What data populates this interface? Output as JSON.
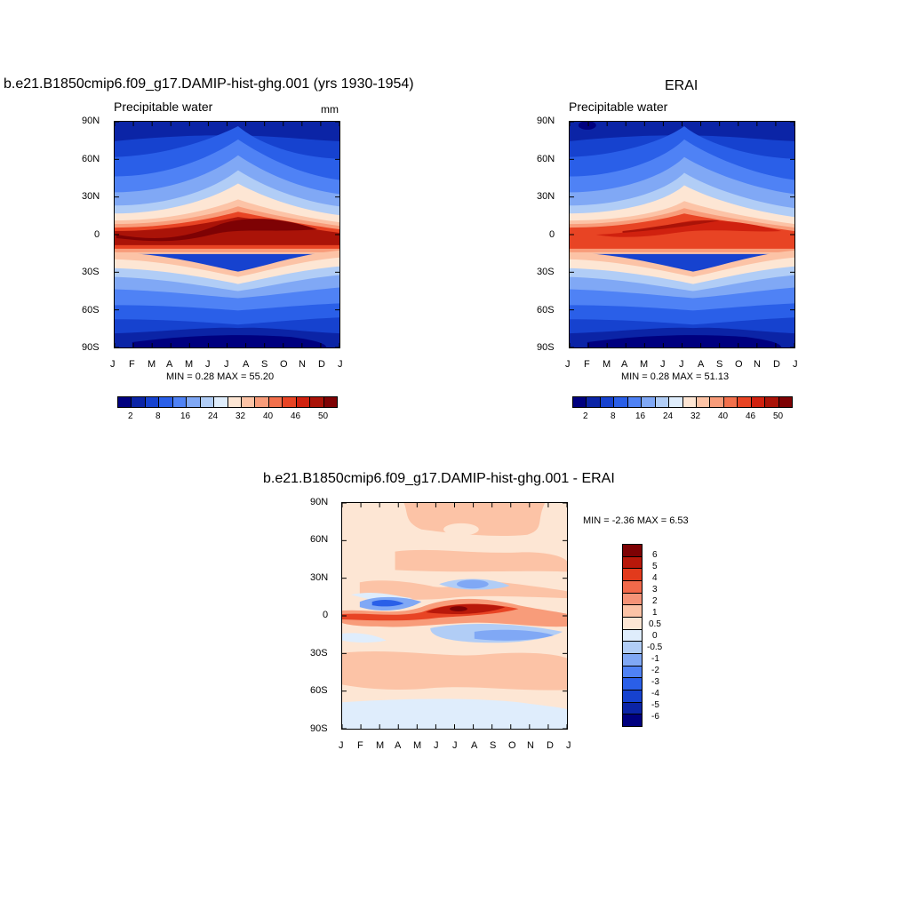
{
  "panel1": {
    "title": "b.e21.B1850cmip6.f09_g17.DAMIP-hist-ghg.001 (yrs 1930-1954)",
    "left_label": "Precipitable water",
    "right_label": "mm",
    "stats": "MIN =   0.28 MAX =  55.20"
  },
  "panel2": {
    "title": "ERAI",
    "left_label": "Precipitable water",
    "stats": "MIN =   0.28 MAX =  51.13"
  },
  "panel3": {
    "title": "b.e21.B1850cmip6.f09_g17.DAMIP-hist-ghg.001 - ERAI",
    "stats": "MIN =  -2.36 MAX =   6.53"
  },
  "axes": {
    "lat_ticks": [
      "90N",
      "60N",
      "30N",
      "0",
      "30S",
      "60S",
      "90S"
    ],
    "month_ticks": [
      "J",
      "F",
      "M",
      "A",
      "M",
      "J",
      "J",
      "A",
      "S",
      "O",
      "N",
      "D",
      "J"
    ]
  },
  "colorbar_abs": {
    "colors": [
      "#00007f",
      "#0b24a6",
      "#1642cf",
      "#2a5fe8",
      "#4f82f5",
      "#80a8f5",
      "#b1cdf6",
      "#dfedfc",
      "#fde6d4",
      "#fcc3a6",
      "#f89c7a",
      "#f2704c",
      "#e84424",
      "#d0210f",
      "#aa1308",
      "#7e0204"
    ],
    "labels": [
      "2",
      "8",
      "16",
      "24",
      "32",
      "40",
      "46",
      "50"
    ]
  },
  "colorbar_diff": {
    "colors": [
      "#7e0204",
      "#b8180a",
      "#e23a1c",
      "#f2694a",
      "#f59377",
      "#fcc3a6",
      "#fde6d4",
      "#dfedfc",
      "#b1cdf6",
      "#80a8f5",
      "#4f82f5",
      "#2a5fe8",
      "#1642cf",
      "#0b24a6",
      "#00007f"
    ],
    "labels": [
      "6",
      "5",
      "4",
      "3",
      "2",
      "1",
      "0.5",
      "0",
      "-0.5",
      "-1",
      "-2",
      "-3",
      "-4",
      "-5",
      "-6"
    ]
  },
  "chart_data": [
    {
      "type": "heatmap",
      "title": "b.e21.B1850cmip6.f09_g17.DAMIP-hist-ghg.001 (yrs 1930-1954)",
      "variable": "Precipitable water",
      "units": "mm",
      "x": [
        "J",
        "F",
        "M",
        "A",
        "M",
        "J",
        "J",
        "A",
        "S",
        "O",
        "N",
        "D",
        "J"
      ],
      "y": [
        "90N",
        "60N",
        "30N",
        "0",
        "30S",
        "60S",
        "90S"
      ],
      "values": [
        [
          2,
          2,
          2,
          3,
          3,
          4,
          5,
          5,
          4,
          3,
          2,
          2,
          2
        ],
        [
          4,
          4,
          5,
          6,
          8,
          12,
          16,
          15,
          11,
          7,
          5,
          4,
          4
        ],
        [
          12,
          12,
          13,
          16,
          22,
          28,
          32,
          31,
          26,
          18,
          14,
          12,
          12
        ],
        [
          46,
          46,
          44,
          47,
          51,
          54,
          55,
          54,
          52,
          51,
          49,
          47,
          46
        ],
        [
          26,
          24,
          20,
          18,
          16,
          15,
          15,
          17,
          20,
          23,
          26,
          27,
          26
        ],
        [
          7,
          6,
          6,
          5,
          5,
          4,
          4,
          4,
          5,
          6,
          7,
          7,
          7
        ],
        [
          1,
          1,
          1,
          1,
          1,
          0.5,
          0.5,
          0.5,
          1,
          1,
          1,
          1,
          1
        ]
      ],
      "min": 0.28,
      "max": 55.2
    },
    {
      "type": "heatmap",
      "title": "ERAI",
      "variable": "Precipitable water",
      "x": [
        "J",
        "F",
        "M",
        "A",
        "M",
        "J",
        "J",
        "A",
        "S",
        "O",
        "N",
        "D",
        "J"
      ],
      "y": [
        "90N",
        "60N",
        "30N",
        "0",
        "30S",
        "60S",
        "90S"
      ],
      "values": [
        [
          2,
          1,
          2,
          2,
          3,
          4,
          5,
          5,
          4,
          3,
          2,
          2,
          2
        ],
        [
          4,
          4,
          5,
          6,
          8,
          12,
          16,
          15,
          11,
          7,
          5,
          4,
          4
        ],
        [
          12,
          12,
          13,
          15,
          21,
          27,
          31,
          30,
          25,
          18,
          14,
          12,
          12
        ],
        [
          45,
          45,
          44,
          45,
          47,
          49,
          51,
          51,
          49,
          47,
          46,
          45,
          45
        ],
        [
          26,
          24,
          20,
          18,
          16,
          15,
          15,
          16,
          19,
          22,
          25,
          27,
          26
        ],
        [
          7,
          6,
          6,
          5,
          5,
          4,
          4,
          4,
          5,
          6,
          7,
          7,
          7
        ],
        [
          1,
          1,
          1,
          1,
          1,
          0.5,
          0.5,
          0.5,
          1,
          1,
          1,
          1,
          1
        ]
      ],
      "min": 0.28,
      "max": 51.13
    },
    {
      "type": "heatmap",
      "title": "b.e21.B1850cmip6.f09_g17.DAMIP-hist-ghg.001 - ERAI",
      "x": [
        "J",
        "F",
        "M",
        "A",
        "M",
        "J",
        "J",
        "A",
        "S",
        "O",
        "N",
        "D",
        "J"
      ],
      "y": [
        "90N",
        "60N",
        "30N",
        "0",
        "30S",
        "60S",
        "90S"
      ],
      "values": [
        [
          0.5,
          0.5,
          0.5,
          0.5,
          1,
          1,
          1,
          0.5,
          1,
          0.5,
          0.5,
          0.5,
          0.5
        ],
        [
          1,
          1,
          1,
          0.5,
          0.5,
          1,
          1,
          1,
          1,
          0.5,
          1,
          1,
          1
        ],
        [
          0.5,
          0.5,
          -1,
          -1,
          0.5,
          1,
          1,
          0.5,
          0.5,
          0.5,
          0.5,
          0.5,
          0.5
        ],
        [
          3,
          2,
          1,
          2,
          3,
          5,
          5,
          4,
          3,
          4,
          3,
          3,
          3
        ],
        [
          -0.5,
          -0.5,
          0.5,
          0.5,
          1,
          -0.5,
          -1,
          -1.5,
          -1.5,
          -1,
          -0.5,
          -0.5,
          -0.5
        ],
        [
          1,
          1,
          1,
          1,
          1,
          1,
          1,
          1,
          1,
          1,
          1,
          1,
          1
        ],
        [
          -0.5,
          -0.5,
          -0.5,
          -0.5,
          -0.5,
          0.5,
          -0.5,
          -0.5,
          -0.5,
          -0.5,
          0.5,
          0.5,
          0.5
        ]
      ],
      "min": -2.36,
      "max": 6.53
    }
  ]
}
